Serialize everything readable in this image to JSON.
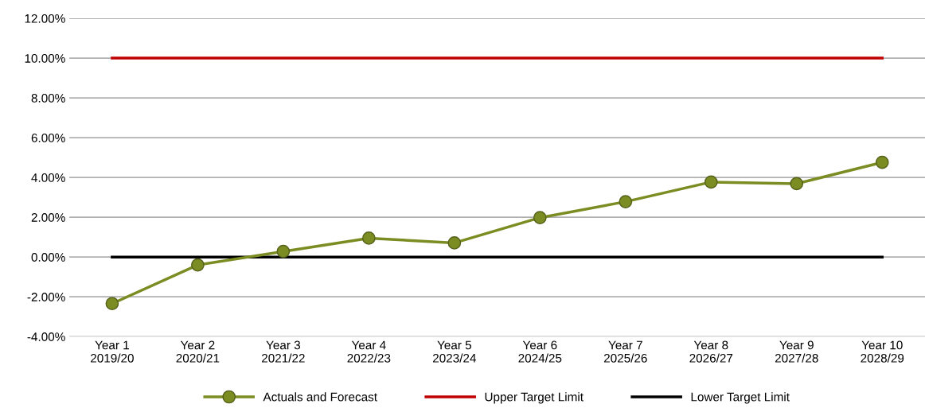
{
  "chart_data": {
    "type": "line",
    "categories": [
      "Year 1\n2019/20",
      "Year 2\n2020/21",
      "Year 3\n2021/22",
      "Year 4\n2022/23",
      "Year 5\n2023/24",
      "Year 6\n2024/25",
      "Year 7\n2025/26",
      "Year 8\n2026/27",
      "Year 9\n2027/28",
      "Year 10\n2028/29"
    ],
    "series": [
      {
        "name": "Actuals and Forecast",
        "color": "#7b8c22",
        "marker": "circle",
        "values": [
          -2.34,
          -0.4,
          0.28,
          0.95,
          0.71,
          1.98,
          2.78,
          3.77,
          3.69,
          4.76
        ]
      },
      {
        "name": "Upper Target Limit",
        "color": "#c00000",
        "marker": "none",
        "values": [
          10,
          10,
          10,
          10,
          10,
          10,
          10,
          10,
          10,
          10
        ]
      },
      {
        "name": "Lower Target Limit",
        "color": "#000000",
        "marker": "none",
        "values": [
          0,
          0,
          0,
          0,
          0,
          0,
          0,
          0,
          0,
          0
        ]
      }
    ],
    "ylim": [
      -4,
      12
    ],
    "yticks": [
      {
        "value": -4,
        "label": "-4.00%"
      },
      {
        "value": -2,
        "label": "-2.00%"
      },
      {
        "value": 0,
        "label": "0.00%"
      },
      {
        "value": 2,
        "label": "2.00%"
      },
      {
        "value": 4,
        "label": "4.00%"
      },
      {
        "value": 6,
        "label": "6.00%"
      },
      {
        "value": 8,
        "label": "8.00%"
      },
      {
        "value": 10,
        "label": "10.00%"
      },
      {
        "value": 12,
        "label": "12.00%"
      }
    ],
    "grid": "y",
    "legend": "bottom",
    "line_style": "solid"
  }
}
